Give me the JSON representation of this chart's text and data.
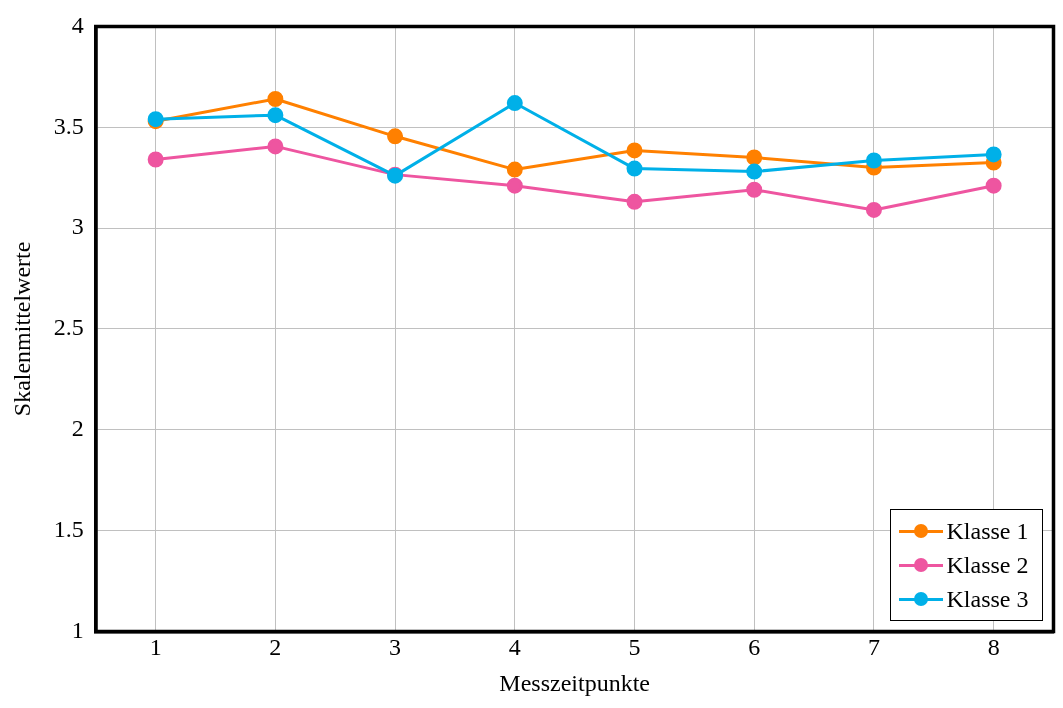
{
  "chart_data": {
    "type": "line",
    "xlabel": "Messzeitpunkte",
    "ylabel": "Skalenmittelwerte",
    "x": [
      1,
      2,
      3,
      4,
      5,
      6,
      7,
      8
    ],
    "xlim": [
      0.5,
      8.5
    ],
    "xticks": [
      1,
      2,
      3,
      4,
      5,
      6,
      7,
      8
    ],
    "ylim": [
      1,
      4
    ],
    "yticks": [
      1,
      1.5,
      2,
      2.5,
      3,
      3.5,
      4
    ],
    "grid": true,
    "legend": "bottom right",
    "marker": "circle",
    "line_style": "solid",
    "series": [
      {
        "name": "Klasse 1",
        "color": "#ff8000",
        "values": [
          3.53,
          3.64,
          3.455,
          3.29,
          3.385,
          3.35,
          3.3,
          3.325
        ]
      },
      {
        "name": "Klasse 2",
        "color": "#ee55a0",
        "values": [
          3.34,
          3.405,
          3.265,
          3.21,
          3.13,
          3.19,
          3.09,
          3.21
        ]
      },
      {
        "name": "Klasse 3",
        "color": "#00b0e8",
        "values": [
          3.54,
          3.56,
          3.26,
          3.62,
          3.295,
          3.28,
          3.335,
          3.365
        ]
      }
    ]
  }
}
